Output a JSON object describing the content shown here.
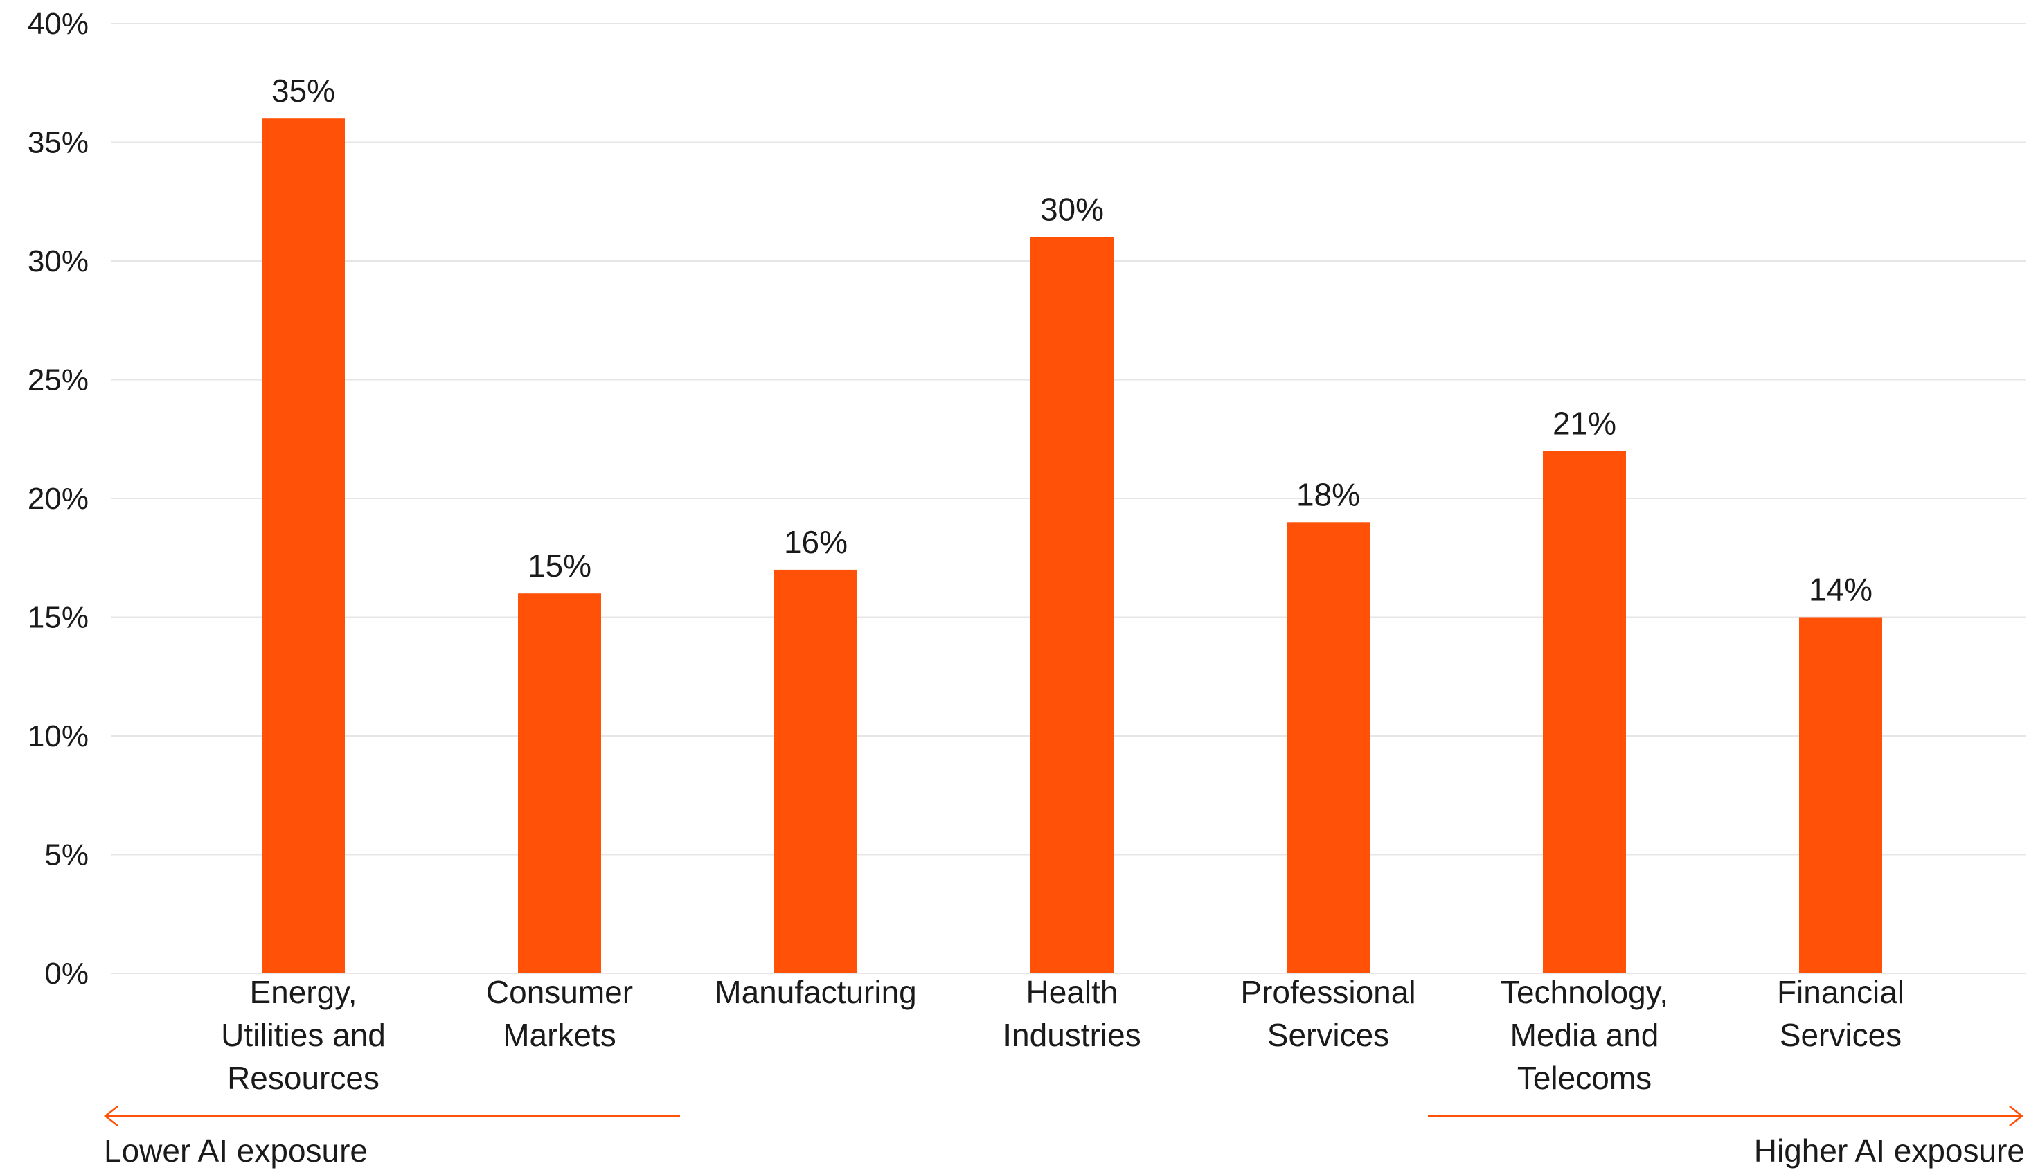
{
  "chart_data": {
    "type": "bar",
    "categories": [
      [
        "Energy,",
        "Utilities and",
        "Resources"
      ],
      [
        "Consumer",
        "Markets"
      ],
      [
        "Manufacturing"
      ],
      [
        "Health",
        "Industries"
      ],
      [
        "Professional",
        "Services"
      ],
      [
        "Technology,",
        "Media and",
        "Telecoms"
      ],
      [
        "Financial",
        "Services"
      ]
    ],
    "values": [
      35,
      15,
      16,
      30,
      18,
      21,
      14
    ],
    "data_labels": [
      "35%",
      "15%",
      "16%",
      "30%",
      "18%",
      "21%",
      "14%"
    ],
    "ylim": [
      0,
      40
    ],
    "y_ticks": [
      0,
      5,
      10,
      15,
      20,
      25,
      30,
      35,
      40
    ],
    "y_tick_labels": [
      "0%",
      "5%",
      "10%",
      "15%",
      "20%",
      "25%",
      "30%",
      "35%",
      "40%"
    ],
    "title": "",
    "xlabel": "",
    "ylabel": "",
    "grid": true,
    "bar_color": "#FF5108",
    "annotations": {
      "lower_exposure": "Lower AI exposure",
      "higher_exposure": "Higher AI exposure"
    }
  }
}
